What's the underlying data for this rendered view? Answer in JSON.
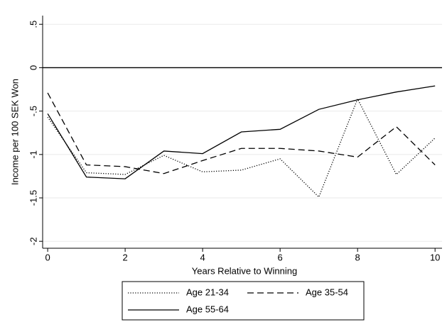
{
  "chart_data": {
    "type": "line",
    "xlabel": "Years Relative to Winning",
    "ylabel": "Income per 100 SEK Won",
    "x": [
      0,
      1,
      2,
      3,
      4,
      5,
      6,
      7,
      8,
      9,
      10
    ],
    "xlim": [
      -0.13,
      10.18
    ],
    "xticks": [
      0,
      2,
      4,
      6,
      8,
      10
    ],
    "ylim": [
      -2.08,
      0.6
    ],
    "yticks": [
      {
        "value": 0.5,
        "label": ".5"
      },
      0,
      {
        "value": -0.5,
        "label": "-.5"
      },
      -1,
      -1.5,
      -2
    ],
    "grid": true,
    "reference_line": 0,
    "series": [
      {
        "name": "Age 21-34",
        "color": "#000000",
        "line_style": "dotted",
        "values": [
          -0.57,
          -1.21,
          -1.23,
          -1.01,
          -1.2,
          -1.18,
          -1.05,
          -1.49,
          -0.36,
          -1.23,
          -0.81
        ]
      },
      {
        "name": "Age 35-54",
        "color": "#000000",
        "line_style": "dashed",
        "values": [
          -0.29,
          -1.12,
          -1.14,
          -1.22,
          -1.07,
          -0.93,
          -0.93,
          -0.96,
          -1.03,
          -0.68,
          -1.12
        ]
      },
      {
        "name": "Age 55-64",
        "color": "#000000",
        "line_style": "solid",
        "values": [
          -0.53,
          -1.26,
          -1.28,
          -0.96,
          -0.99,
          -0.74,
          -0.71,
          -0.48,
          -0.37,
          -0.28,
          -0.21
        ]
      }
    ],
    "legend": "bottom"
  }
}
